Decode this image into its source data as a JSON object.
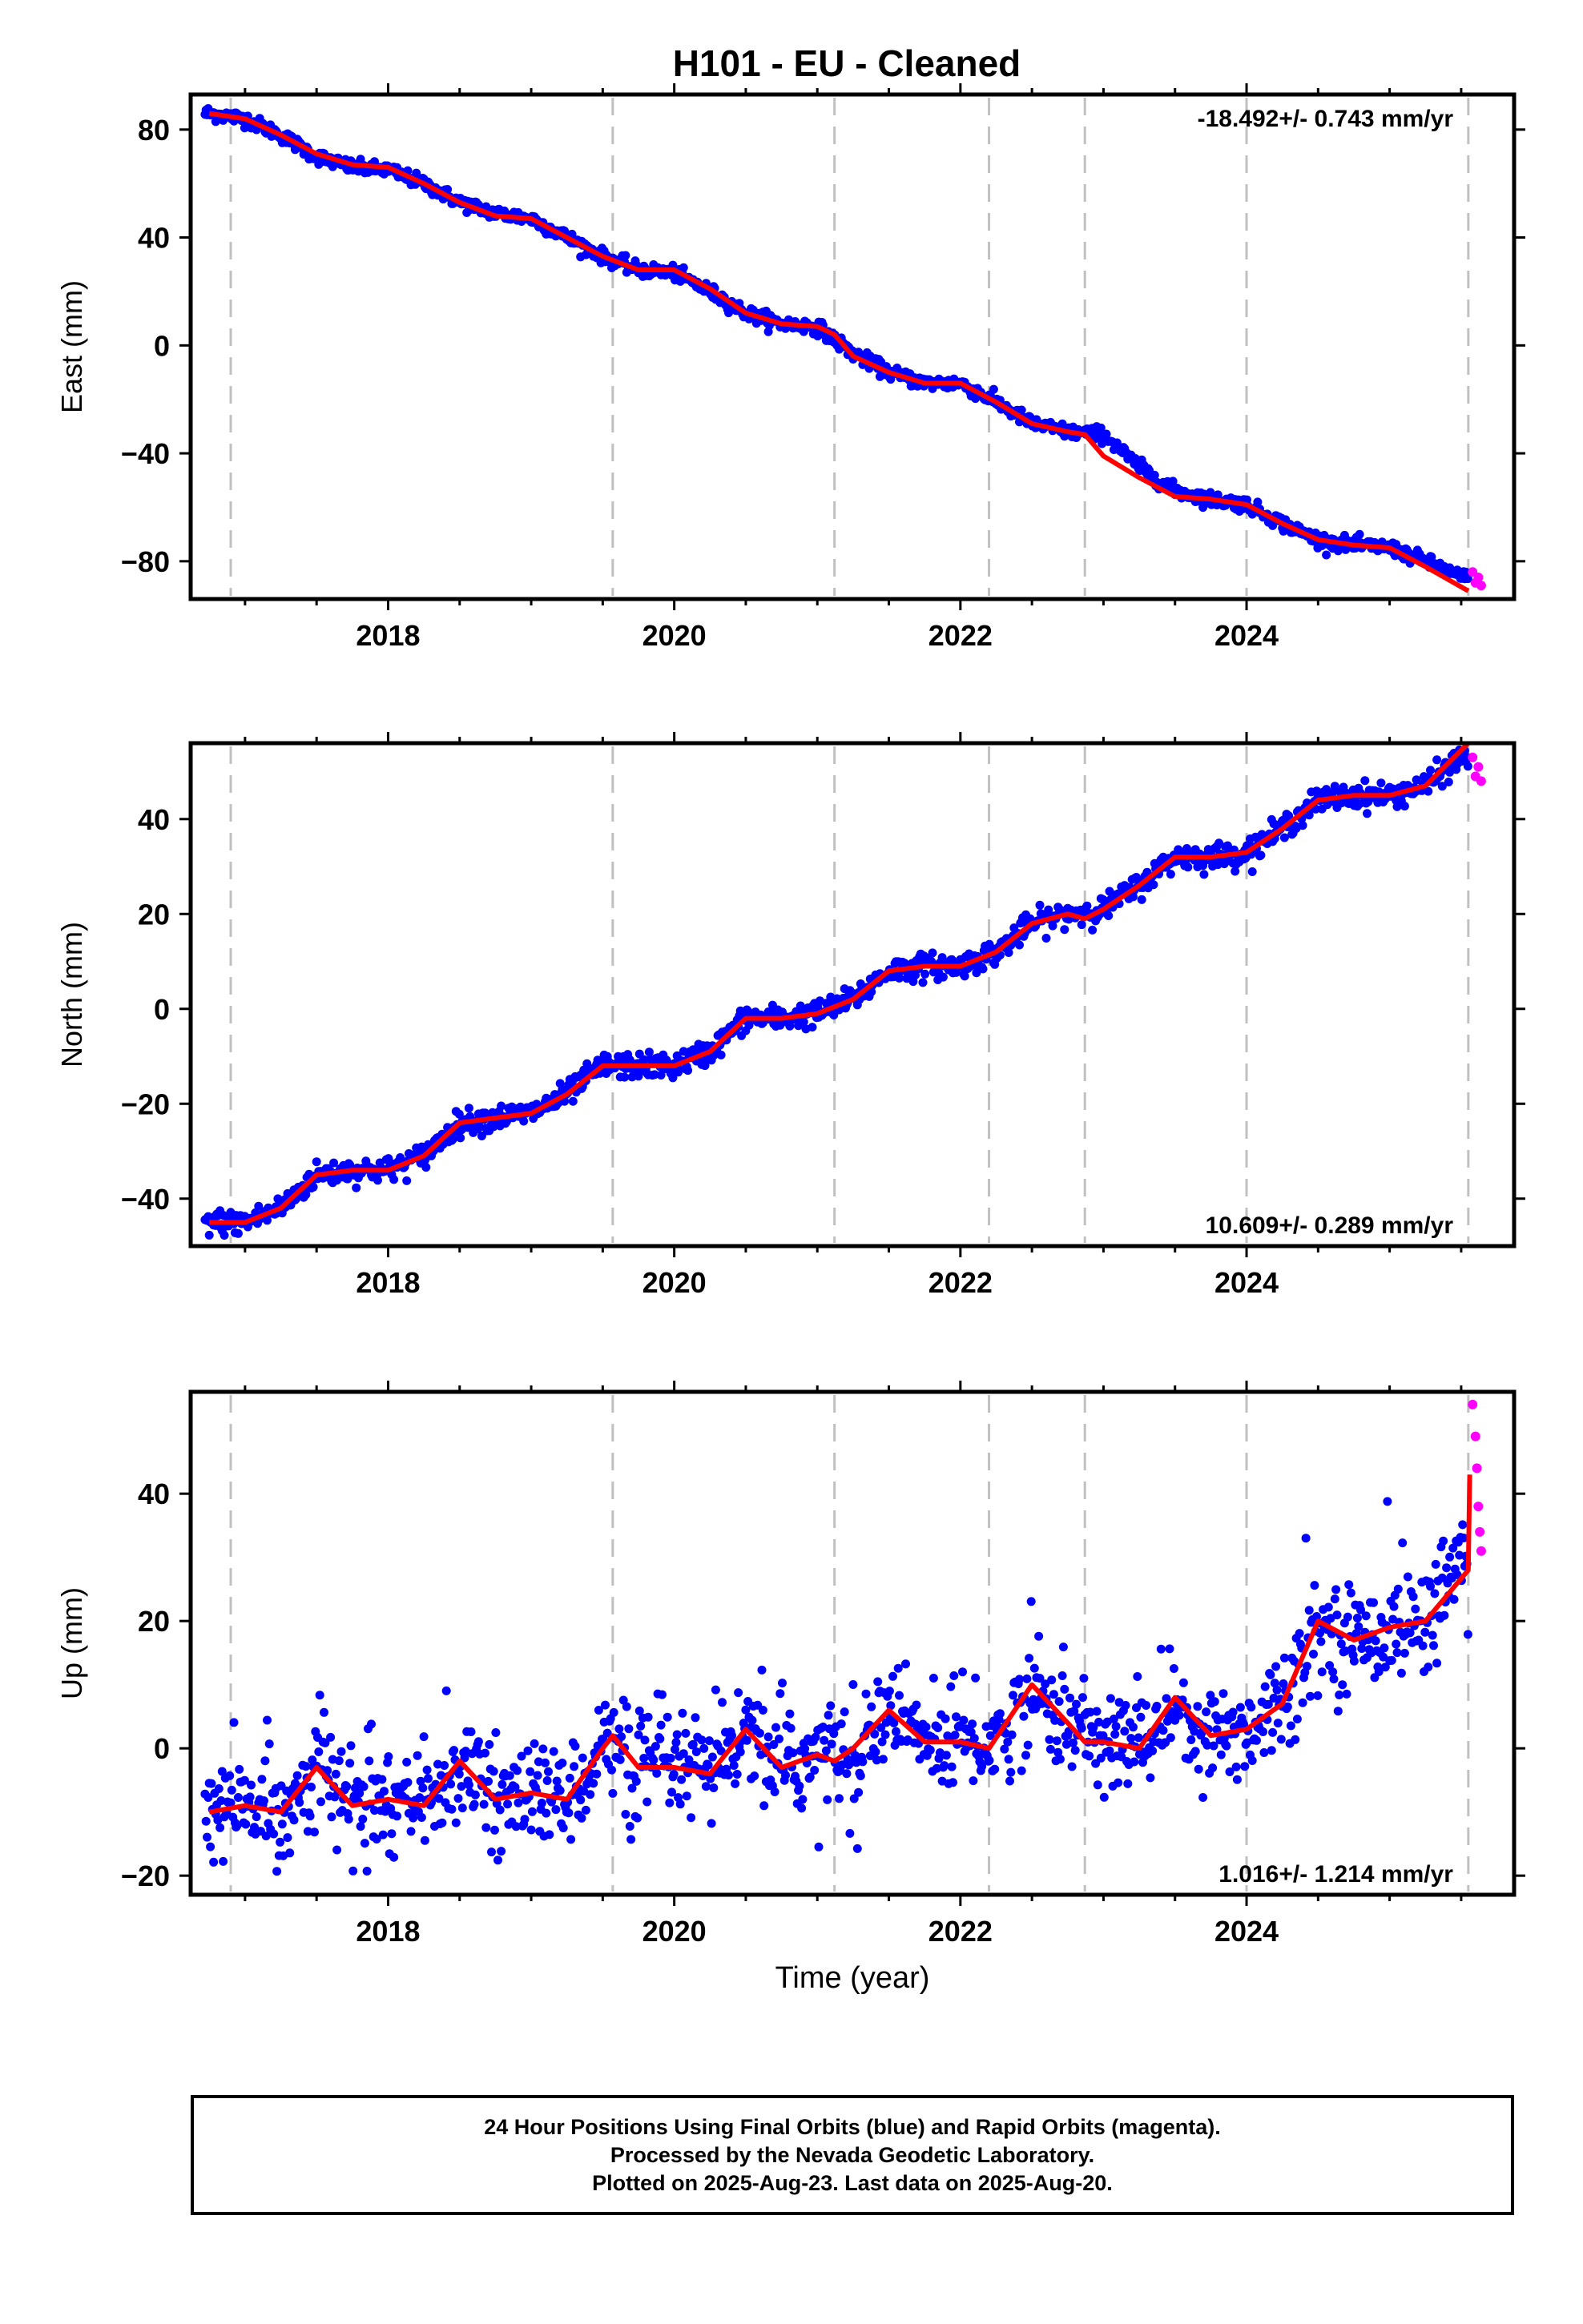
{
  "title": "H101  - EU - Cleaned",
  "colors": {
    "final_orbits": "#0000ff",
    "rapid_orbits": "#ff00ff",
    "model_fit": "#ff0000",
    "equipment_change_lines": "#c0c0c0"
  },
  "footer": {
    "line1": "24 Hour Positions Using Final Orbits (blue) and Rapid Orbits (magenta).",
    "line2": "Processed by the Nevada Geodetic Laboratory.",
    "line3": "Plotted on 2025-Aug-23. Last data on 2025-Aug-20."
  },
  "chart_data": [
    {
      "type": "scatter",
      "component": "east",
      "ylabel": "East (mm)",
      "xlabel": "",
      "xlim": [
        2016.62,
        2025.87
      ],
      "ylim": [
        -94,
        93
      ],
      "xticks": [
        2018,
        2020,
        2022,
        2024
      ],
      "yticks": [
        80,
        40,
        0,
        -40,
        -80
      ],
      "ytick_labels": [
        "80",
        "40",
        "0",
        "−40",
        "−80"
      ],
      "grid": false,
      "rate_label": "-18.492+/- 0.743 mm/yr",
      "rate_label_position": "top-right",
      "step_epochs": [
        2016.9,
        2019.57,
        2021.12,
        2022.2,
        2022.87,
        2024.0,
        2025.55
      ],
      "series": [
        {
          "role": "final_orbits",
          "x": [
            2016.75,
            2017.0,
            2017.25,
            2017.5,
            2017.75,
            2018.0,
            2018.25,
            2018.5,
            2018.75,
            2019.0,
            2019.25,
            2019.5,
            2019.75,
            2020.0,
            2020.25,
            2020.5,
            2020.75,
            2021.0,
            2021.25,
            2021.5,
            2021.75,
            2022.0,
            2022.25,
            2022.5,
            2022.75,
            2023.0,
            2023.25,
            2023.5,
            2023.75,
            2024.0,
            2024.25,
            2024.5,
            2024.75,
            2025.0,
            2025.25,
            2025.5
          ],
          "y": [
            86,
            84,
            78,
            70,
            66,
            65,
            60,
            53,
            49,
            47,
            40,
            33,
            28,
            27,
            20,
            12,
            8,
            7,
            -3,
            -10,
            -14,
            -14,
            -21,
            -29,
            -32,
            -33,
            -45,
            -54,
            -57,
            -59,
            -66,
            -72,
            -74,
            -75,
            -80,
            -86
          ]
        },
        {
          "role": "rapid_orbits",
          "x": [
            2025.58,
            2025.6,
            2025.62,
            2025.64
          ],
          "y": [
            -84,
            -88,
            -86,
            -89
          ]
        },
        {
          "role": "model_fit",
          "x": [
            2016.75,
            2017.0,
            2017.25,
            2017.5,
            2017.75,
            2018.0,
            2018.25,
            2018.5,
            2018.75,
            2019.0,
            2019.25,
            2019.5,
            2019.75,
            2020.0,
            2020.25,
            2020.5,
            2020.75,
            2021.0,
            2021.12,
            2021.25,
            2021.5,
            2021.75,
            2022.0,
            2022.25,
            2022.5,
            2022.75,
            2022.87,
            2023.0,
            2023.25,
            2023.5,
            2023.75,
            2024.0,
            2024.25,
            2024.5,
            2024.75,
            2025.0,
            2025.25,
            2025.55
          ],
          "y": [
            86,
            84,
            78,
            71,
            67,
            66,
            60,
            53,
            48,
            47,
            40,
            33,
            28,
            28,
            21,
            12,
            8,
            7,
            4,
            -4,
            -10,
            -14,
            -14,
            -21,
            -29,
            -32,
            -33,
            -41,
            -49,
            -56,
            -57,
            -59,
            -66,
            -72,
            -74,
            -75,
            -82,
            -91
          ]
        }
      ]
    },
    {
      "type": "scatter",
      "component": "north",
      "ylabel": "North (mm)",
      "xlabel": "",
      "xlim": [
        2016.62,
        2025.87
      ],
      "ylim": [
        -50,
        56
      ],
      "xticks": [
        2018,
        2020,
        2022,
        2024
      ],
      "yticks": [
        40,
        20,
        0,
        -20,
        -40
      ],
      "ytick_labels": [
        "40",
        "20",
        "0",
        "−20",
        "−40"
      ],
      "grid": false,
      "rate_label": "10.609+/- 0.289 mm/yr",
      "rate_label_position": "bottom-right",
      "step_epochs": [
        2016.9,
        2019.57,
        2021.12,
        2022.2,
        2022.87,
        2024.0,
        2025.55
      ],
      "series": [
        {
          "role": "final_orbits",
          "x": [
            2016.75,
            2017.0,
            2017.25,
            2017.5,
            2017.75,
            2018.0,
            2018.25,
            2018.5,
            2018.75,
            2019.0,
            2019.25,
            2019.5,
            2019.75,
            2020.0,
            2020.25,
            2020.5,
            2020.75,
            2021.0,
            2021.25,
            2021.5,
            2021.75,
            2022.0,
            2022.25,
            2022.5,
            2022.75,
            2023.0,
            2023.25,
            2023.5,
            2023.75,
            2024.0,
            2024.25,
            2024.5,
            2024.75,
            2025.0,
            2025.25,
            2025.5
          ],
          "y": [
            -45,
            -45,
            -42,
            -35,
            -34,
            -34,
            -31,
            -24,
            -23,
            -22,
            -18,
            -12,
            -12,
            -12,
            -9,
            -2,
            -2,
            -1,
            2,
            8,
            9,
            9,
            12,
            18,
            20,
            21,
            26,
            32,
            32,
            33,
            38,
            44,
            45,
            45,
            47,
            53
          ]
        },
        {
          "role": "rapid_orbits",
          "x": [
            2025.58,
            2025.6,
            2025.62,
            2025.64
          ],
          "y": [
            53,
            49,
            51,
            48
          ]
        },
        {
          "role": "model_fit",
          "x": [
            2016.75,
            2017.0,
            2017.25,
            2017.5,
            2017.75,
            2018.0,
            2018.25,
            2018.5,
            2018.75,
            2019.0,
            2019.25,
            2019.5,
            2019.75,
            2020.0,
            2020.25,
            2020.5,
            2020.75,
            2021.0,
            2021.25,
            2021.5,
            2021.75,
            2022.0,
            2022.25,
            2022.5,
            2022.75,
            2022.87,
            2023.0,
            2023.25,
            2023.5,
            2023.75,
            2024.0,
            2024.25,
            2024.5,
            2024.75,
            2025.0,
            2025.25,
            2025.55
          ],
          "y": [
            -45,
            -45,
            -42,
            -35,
            -34,
            -34,
            -31,
            -24,
            -23,
            -22,
            -18,
            -12,
            -12,
            -12,
            -9,
            -2,
            -2,
            -1,
            2,
            8,
            9,
            9,
            12,
            18,
            20,
            19,
            21,
            26,
            32,
            32,
            33,
            38,
            44,
            45,
            45,
            47,
            56
          ]
        }
      ]
    },
    {
      "type": "scatter",
      "component": "up",
      "ylabel": "Up (mm)",
      "xlabel": "Time (year)",
      "xlim": [
        2016.62,
        2025.87
      ],
      "ylim": [
        -23,
        56
      ],
      "xticks": [
        2018,
        2020,
        2022,
        2024
      ],
      "yticks": [
        40,
        20,
        0,
        -20
      ],
      "ytick_labels": [
        "40",
        "20",
        "0",
        "−20"
      ],
      "grid": false,
      "rate_label": "1.016+/- 1.214 mm/yr",
      "rate_label_position": "bottom-right",
      "step_epochs": [
        2016.9,
        2019.57,
        2021.12,
        2022.2,
        2022.87,
        2024.0,
        2025.55
      ],
      "series": [
        {
          "role": "final_orbits",
          "x": [
            2016.75,
            2017.0,
            2017.25,
            2017.5,
            2017.75,
            2018.0,
            2018.25,
            2018.5,
            2018.75,
            2019.0,
            2019.25,
            2019.5,
            2019.75,
            2020.0,
            2020.25,
            2020.5,
            2020.75,
            2021.0,
            2021.25,
            2021.5,
            2021.75,
            2022.0,
            2022.25,
            2022.5,
            2022.75,
            2023.0,
            2023.25,
            2023.5,
            2023.75,
            2024.0,
            2024.25,
            2024.5,
            2024.75,
            2025.0,
            2025.25,
            2025.5
          ],
          "y": [
            -10,
            -9,
            -10,
            -3,
            -9,
            -8,
            -9,
            -2,
            -8,
            -7,
            -8,
            1,
            -3,
            -3,
            -4,
            2,
            -3,
            -1,
            0,
            6,
            1,
            1,
            1,
            9,
            4,
            1,
            1,
            7,
            2,
            3,
            8,
            19,
            17,
            19,
            20,
            30
          ]
        },
        {
          "role": "rapid_orbits",
          "x": [
            2025.58,
            2025.6,
            2025.61,
            2025.62,
            2025.63,
            2025.64
          ],
          "y": [
            54,
            49,
            44,
            38,
            34,
            31
          ]
        },
        {
          "role": "model_fit",
          "x": [
            2016.75,
            2017.0,
            2017.25,
            2017.5,
            2017.75,
            2018.0,
            2018.25,
            2018.5,
            2018.75,
            2019.0,
            2019.25,
            2019.5,
            2019.57,
            2019.75,
            2020.0,
            2020.25,
            2020.5,
            2020.75,
            2021.0,
            2021.12,
            2021.25,
            2021.5,
            2021.75,
            2022.0,
            2022.2,
            2022.5,
            2022.75,
            2022.87,
            2023.0,
            2023.25,
            2023.5,
            2023.75,
            2024.0,
            2024.25,
            2024.5,
            2024.75,
            2025.0,
            2025.25,
            2025.55,
            2025.56
          ],
          "y": [
            -10,
            -9,
            -10,
            -3,
            -9,
            -8,
            -9,
            -2,
            -8,
            -7,
            -8,
            0,
            2,
            -3,
            -3,
            -4,
            3,
            -3,
            -1,
            -2,
            0,
            6,
            1,
            1,
            0,
            10,
            4,
            1,
            1,
            0,
            8,
            2,
            3,
            7,
            20,
            17,
            19,
            20,
            28,
            43
          ]
        }
      ]
    }
  ]
}
